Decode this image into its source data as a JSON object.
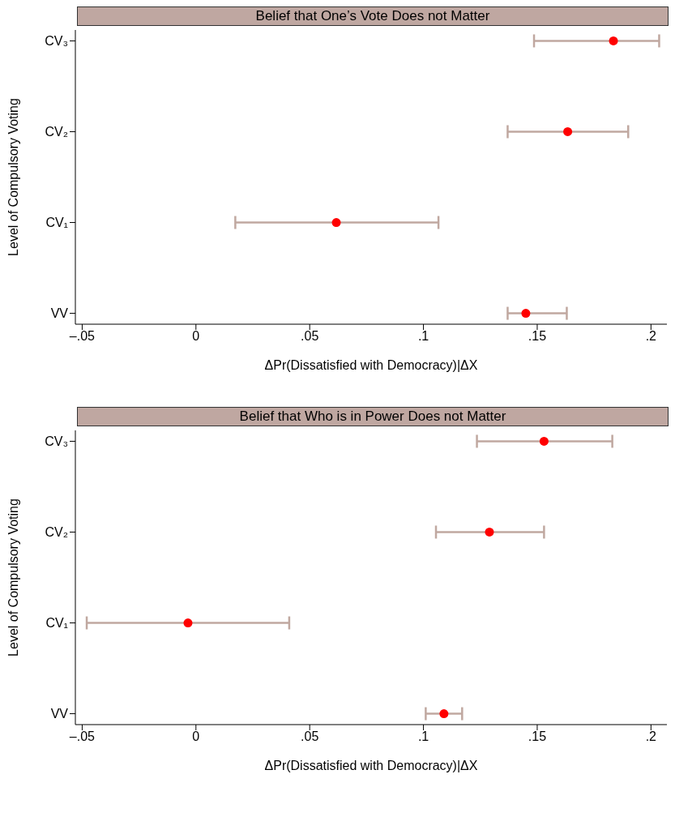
{
  "chart_data": [
    {
      "type": "scatter",
      "orientation": "horizontal",
      "title": "Belief that One’s Vote Does not Matter",
      "xlabel": "ΔPr(Dissatisfied with Democracy)|ΔX",
      "ylabel": "Level of Compulsory Voting",
      "categories": [
        "CV₃",
        "CV₂",
        "CV₁",
        "VV"
      ],
      "color": "#ff0000",
      "marker": "circle",
      "values": [
        0.1835,
        0.1634,
        0.0617,
        0.145
      ],
      "errors": [
        [
          0.1486,
          0.2036
        ],
        [
          0.137,
          0.19
        ],
        [
          0.0173,
          0.1066
        ],
        [
          0.137,
          0.163
        ]
      ],
      "xlim": [
        -0.053,
        0.207
      ],
      "xticks": [
        {
          "value": -0.05,
          "label": "–.05"
        },
        0,
        {
          "value": 0.05,
          "label": ".05"
        },
        {
          "value": 0.1,
          "label": ".1"
        },
        {
          "value": 0.15,
          "label": ".15"
        },
        {
          "value": 0.2,
          "label": ".2"
        }
      ]
    },
    {
      "type": "scatter",
      "orientation": "horizontal",
      "title": "Belief that Who is in Power Does not Matter",
      "xlabel": "ΔPr(Dissatisfied with Democracy)|ΔX",
      "ylabel": "Level of Compulsory Voting",
      "categories": [
        "CV₃",
        "CV₂",
        "CV₁",
        "VV"
      ],
      "color": "#ff0000",
      "marker": "circle",
      "values": [
        0.153,
        0.129,
        -0.0035,
        0.109
      ],
      "errors": [
        [
          0.1235,
          0.183
        ],
        [
          0.1055,
          0.153
        ],
        [
          -0.048,
          0.041
        ],
        [
          0.101,
          0.117
        ]
      ],
      "xlim": [
        -0.053,
        0.207
      ],
      "xticks": [
        {
          "value": -0.05,
          "label": "–.05"
        },
        0,
        {
          "value": 0.05,
          "label": ".05"
        },
        {
          "value": 0.1,
          "label": ".1"
        },
        {
          "value": 0.15,
          "label": ".15"
        },
        {
          "value": 0.2,
          "label": ".2"
        }
      ]
    }
  ]
}
